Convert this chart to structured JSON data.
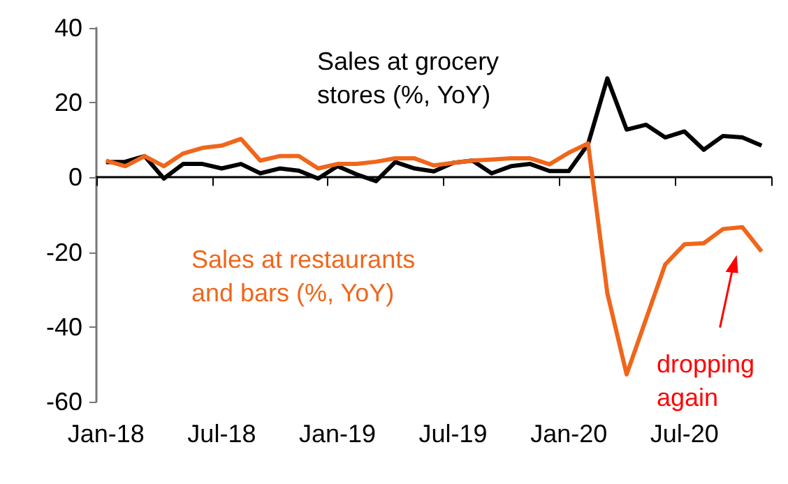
{
  "chart_data": {
    "type": "line",
    "categories": [
      "Jan-18",
      null,
      null,
      null,
      null,
      null,
      "Jul-18",
      null,
      null,
      null,
      null,
      null,
      "Jan-19",
      null,
      null,
      null,
      null,
      null,
      "Jul-19",
      null,
      null,
      null,
      null,
      null,
      "Jan-20",
      null,
      null,
      null,
      null,
      null,
      "Jul-20",
      null,
      null,
      null,
      null
    ],
    "series": [
      {
        "name": "Sales at grocery stores (%, YoY)",
        "color": "#000000",
        "values": [
          4.1,
          4.2,
          5.7,
          -0.3,
          3.6,
          3.6,
          2.4,
          3.6,
          1.1,
          2.4,
          1.8,
          -0.3,
          3.0,
          0.8,
          -1.0,
          4.1,
          2.4,
          1.6,
          3.9,
          4.5,
          1.1,
          3.0,
          3.6,
          1.7,
          1.7,
          8.9,
          26.5,
          12.8,
          14.1,
          10.7,
          12.3,
          7.4,
          11.1,
          10.7,
          8.5
        ]
      },
      {
        "name": "Sales at restaurants and bars (%, YoY)",
        "color": "#f0661a",
        "values": [
          4.5,
          3.0,
          5.7,
          3.0,
          6.4,
          7.9,
          8.5,
          10.3,
          4.5,
          5.7,
          5.7,
          2.4,
          3.6,
          3.6,
          4.2,
          5.1,
          5.1,
          3.2,
          3.9,
          4.5,
          4.8,
          5.1,
          5.1,
          3.5,
          6.6,
          9.1,
          -31,
          -52.7,
          -38,
          -23.3,
          -17.9,
          -17.6,
          -13.8,
          -13.3,
          -19.8
        ]
      }
    ],
    "ylim": [
      -60,
      40
    ],
    "yticks": [
      -60,
      -40,
      -20,
      0,
      20,
      40
    ],
    "legend": false,
    "marker": "none",
    "annotations": [
      "dropping again"
    ]
  }
}
